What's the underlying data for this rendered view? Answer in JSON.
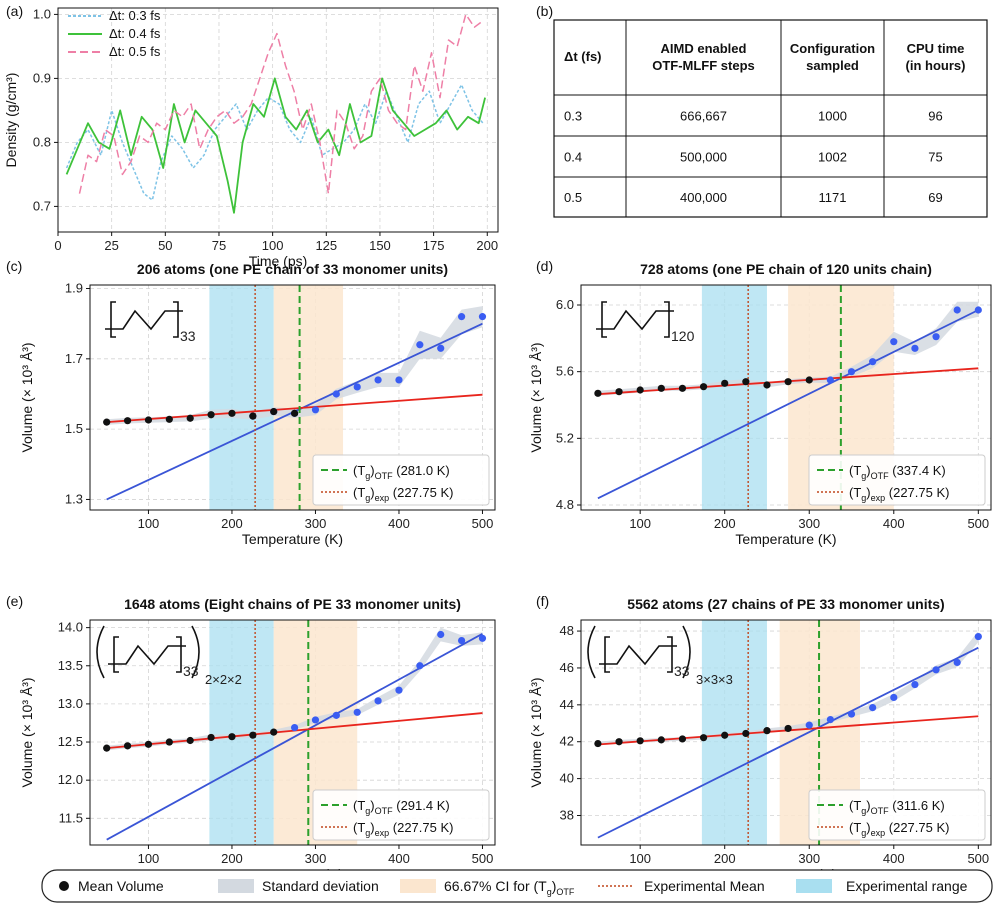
{
  "panel_labels": [
    "(a)",
    "(b)",
    "(c)",
    "(d)",
    "(e)",
    "(f)"
  ],
  "chart_data": [
    {
      "id": "a",
      "type": "line",
      "title": "",
      "xlabel": "Time (ps)",
      "ylabel": "Density (g/cm³)",
      "xlim": [
        0,
        205
      ],
      "ylim": [
        0.66,
        1.01
      ],
      "xticks": [
        0,
        25,
        50,
        75,
        100,
        125,
        150,
        175,
        200
      ],
      "yticks": [
        0.7,
        0.8,
        0.9,
        1.0
      ],
      "ytick_labels": [
        "0.7",
        "0.8",
        "0.9",
        "1.0"
      ],
      "grid": true,
      "legend_position": "top-left",
      "series": [
        {
          "name": "Δt: 0.3 fs",
          "color": "#7ec3e6",
          "style": "dotted",
          "x": [
            4,
            9,
            14,
            20,
            25,
            30,
            35,
            40,
            44,
            48,
            53,
            58,
            63,
            68,
            73,
            78,
            83,
            88,
            93,
            98,
            103,
            108,
            113,
            118,
            123,
            128,
            133,
            138,
            143,
            148,
            153,
            158,
            163,
            168,
            173,
            178,
            183,
            188,
            193,
            198
          ],
          "values": [
            0.76,
            0.8,
            0.82,
            0.78,
            0.85,
            0.8,
            0.76,
            0.72,
            0.71,
            0.77,
            0.81,
            0.79,
            0.76,
            0.78,
            0.82,
            0.84,
            0.86,
            0.82,
            0.85,
            0.87,
            0.86,
            0.82,
            0.8,
            0.84,
            0.78,
            0.79,
            0.8,
            0.82,
            0.86,
            0.83,
            0.88,
            0.84,
            0.8,
            0.86,
            0.88,
            0.83,
            0.86,
            0.89,
            0.85,
            0.83
          ]
        },
        {
          "name": "Δt: 0.4 fs",
          "color": "#3ec23a",
          "style": "solid",
          "x": [
            4,
            9,
            14,
            19,
            24,
            29,
            34,
            39,
            44,
            49,
            54,
            59,
            64,
            69,
            74,
            79,
            82,
            86,
            91,
            96,
            101,
            106,
            111,
            116,
            121,
            126,
            131,
            136,
            141,
            146,
            151,
            156,
            161,
            166,
            171,
            176,
            181,
            186,
            191,
            196,
            199
          ],
          "values": [
            0.75,
            0.79,
            0.83,
            0.8,
            0.79,
            0.85,
            0.78,
            0.84,
            0.82,
            0.76,
            0.86,
            0.8,
            0.85,
            0.83,
            0.81,
            0.74,
            0.69,
            0.8,
            0.86,
            0.84,
            0.9,
            0.84,
            0.82,
            0.85,
            0.8,
            0.82,
            0.78,
            0.86,
            0.8,
            0.81,
            0.9,
            0.85,
            0.83,
            0.81,
            0.82,
            0.83,
            0.85,
            0.82,
            0.84,
            0.83,
            0.87
          ]
        },
        {
          "name": "Δt: 0.5 fs",
          "color": "#ee7fa6",
          "style": "dashed",
          "x": [
            10,
            14,
            18,
            22,
            26,
            30,
            34,
            38,
            42,
            46,
            50,
            54,
            58,
            62,
            66,
            70,
            74,
            78,
            82,
            86,
            90,
            94,
            98,
            102,
            106,
            110,
            114,
            118,
            122,
            126,
            130,
            134,
            138,
            142,
            146,
            150,
            154,
            158,
            162,
            166,
            170,
            174,
            178,
            182,
            186,
            190,
            194,
            198
          ],
          "values": [
            0.72,
            0.78,
            0.77,
            0.82,
            0.81,
            0.75,
            0.77,
            0.81,
            0.8,
            0.83,
            0.82,
            0.85,
            0.84,
            0.86,
            0.79,
            0.82,
            0.84,
            0.85,
            0.83,
            0.84,
            0.86,
            0.9,
            0.94,
            0.97,
            0.92,
            0.88,
            0.82,
            0.86,
            0.8,
            0.72,
            0.85,
            0.83,
            0.79,
            0.81,
            0.88,
            0.9,
            0.85,
            0.83,
            0.82,
            0.92,
            0.88,
            0.94,
            0.87,
            0.96,
            0.95,
            1.0,
            0.98,
            0.99
          ]
        }
      ]
    },
    {
      "id": "b",
      "type": "table",
      "columns": [
        "Δt (fs)",
        "AIMD enabled OTF-MLFF steps",
        "Configuration sampled",
        "CPU time (in hours)"
      ],
      "header_lines": [
        [
          "Δt (fs)"
        ],
        [
          "AIMD enabled",
          "OTF-MLFF steps"
        ],
        [
          "Configuration",
          "sampled"
        ],
        [
          "CPU time",
          "(in hours)"
        ]
      ],
      "rows": [
        [
          "0.3",
          "666,667",
          "1000",
          "96"
        ],
        [
          "0.4",
          "500,000",
          "1002",
          "75"
        ],
        [
          "0.5",
          "400,000",
          "1171",
          "69"
        ]
      ]
    },
    {
      "id": "c",
      "type": "scatter",
      "title": "206 atoms (one PE chain of 33 monomer units)",
      "xlabel": "Temperature (K)",
      "ylabel": "Volume (× 10³ Å³)",
      "xlim": [
        30,
        515
      ],
      "ylim": [
        1.27,
        1.91
      ],
      "xticks": [
        100,
        200,
        300,
        400,
        500
      ],
      "yticks": [
        1.3,
        1.5,
        1.7,
        1.9
      ],
      "ytick_labels": [
        "1.3",
        "1.5",
        "1.7",
        "1.9"
      ],
      "molecule_subscript": "33",
      "exp_range": [
        173,
        250
      ],
      "ci_range": [
        250,
        333
      ],
      "tg_otf": 281.0,
      "tg_exp": 227.75,
      "legend_otf": "(281.0 K)",
      "legend_exp": "(227.75 K)",
      "black_points": {
        "x": [
          50,
          75,
          100,
          125,
          150,
          175,
          200,
          225,
          250,
          275
        ],
        "values": [
          1.52,
          1.524,
          1.526,
          1.528,
          1.531,
          1.541,
          1.545,
          1.537,
          1.55,
          1.545
        ]
      },
      "blue_points": {
        "x": [
          225,
          250,
          275,
          300,
          325,
          350,
          375,
          400,
          425,
          450,
          475,
          500
        ],
        "values": [
          1.537,
          1.55,
          1.545,
          1.555,
          1.6,
          1.62,
          1.64,
          1.64,
          1.74,
          1.73,
          1.82,
          1.82
        ]
      },
      "red_fit": {
        "x": [
          50,
          500
        ],
        "values": [
          1.52,
          1.598
        ]
      },
      "blue_fit": {
        "x": [
          50,
          500
        ],
        "values": [
          1.3,
          1.8
        ]
      },
      "band_x": [
        50,
        75,
        100,
        125,
        150,
        175,
        200,
        225,
        250,
        275,
        300,
        325,
        350,
        375,
        400,
        425,
        450,
        475,
        500
      ],
      "band_low": [
        1.512,
        1.516,
        1.518,
        1.52,
        1.522,
        1.53,
        1.532,
        1.527,
        1.538,
        1.532,
        1.54,
        1.585,
        1.603,
        1.62,
        1.62,
        1.7,
        1.7,
        1.77,
        1.79
      ],
      "band_high": [
        1.528,
        1.532,
        1.534,
        1.536,
        1.54,
        1.555,
        1.558,
        1.548,
        1.562,
        1.558,
        1.57,
        1.615,
        1.637,
        1.66,
        1.66,
        1.78,
        1.76,
        1.84,
        1.85
      ]
    },
    {
      "id": "d",
      "type": "scatter",
      "title": "728 atoms (one PE chain of  120 units chain)",
      "xlabel": "Temperature (K)",
      "ylabel": "Volume (× 10³ Å³)",
      "xlim": [
        30,
        515
      ],
      "ylim": [
        4.77,
        6.12
      ],
      "xticks": [
        100,
        200,
        300,
        400,
        500
      ],
      "yticks": [
        4.8,
        5.2,
        5.6,
        6.0
      ],
      "ytick_labels": [
        "4.8",
        "5.2",
        "5.6",
        "6.0"
      ],
      "molecule_subscript": "120",
      "exp_range": [
        173,
        250
      ],
      "ci_range": [
        275,
        400
      ],
      "tg_otf": 337.4,
      "tg_exp": 227.75,
      "legend_otf": "(337.4 K)",
      "legend_exp": "(227.75 K)",
      "black_points": {
        "x": [
          50,
          75,
          100,
          125,
          150,
          175,
          200,
          225,
          250,
          275,
          300
        ],
        "values": [
          5.47,
          5.48,
          5.49,
          5.5,
          5.5,
          5.51,
          5.53,
          5.54,
          5.52,
          5.54,
          5.55
        ]
      },
      "blue_points": {
        "x": [
          325,
          350,
          375,
          400,
          425,
          450,
          475,
          500
        ],
        "values": [
          5.55,
          5.6,
          5.66,
          5.78,
          5.74,
          5.81,
          5.97,
          5.97
        ]
      },
      "red_fit": {
        "x": [
          50,
          500
        ],
        "values": [
          5.465,
          5.62
        ]
      },
      "blue_fit": {
        "x": [
          50,
          500
        ],
        "values": [
          4.84,
          5.97
        ]
      },
      "band_x": [
        50,
        75,
        100,
        125,
        150,
        175,
        200,
        225,
        250,
        275,
        300,
        325,
        350,
        375,
        400,
        425,
        450,
        475,
        500
      ],
      "band_low": [
        5.455,
        5.465,
        5.475,
        5.485,
        5.485,
        5.495,
        5.515,
        5.525,
        5.505,
        5.525,
        5.535,
        5.53,
        5.57,
        5.62,
        5.72,
        5.7,
        5.76,
        5.9,
        5.93
      ],
      "band_high": [
        5.485,
        5.495,
        5.505,
        5.515,
        5.515,
        5.525,
        5.545,
        5.555,
        5.535,
        5.555,
        5.565,
        5.57,
        5.63,
        5.7,
        5.84,
        5.78,
        5.86,
        6.02,
        6.02
      ]
    },
    {
      "id": "e",
      "type": "scatter",
      "title": "1648 atoms (Eight chains of PE 33 monomer units)",
      "xlabel": "Temperature (K)",
      "ylabel": "Volume (× 10³ Å³)",
      "xlim": [
        30,
        515
      ],
      "ylim": [
        11.15,
        14.1
      ],
      "xticks": [
        100,
        200,
        300,
        400,
        500
      ],
      "yticks": [
        11.5,
        12.0,
        12.5,
        13.0,
        13.5,
        14.0
      ],
      "ytick_labels": [
        "11.5",
        "12.0",
        "12.5",
        "13.0",
        "13.5",
        "14.0"
      ],
      "molecule_subscript": "33",
      "molecule_supercell": "2×2×2",
      "exp_range": [
        173,
        250
      ],
      "ci_range": [
        250,
        350
      ],
      "tg_otf": 291.4,
      "tg_exp": 227.75,
      "legend_otf": "(291.4 K)",
      "legend_exp": "(227.75 K)",
      "black_points": {
        "x": [
          50,
          75,
          100,
          125,
          150,
          175,
          200,
          225,
          250
        ],
        "values": [
          12.42,
          12.45,
          12.47,
          12.5,
          12.52,
          12.56,
          12.57,
          12.59,
          12.63
        ]
      },
      "blue_points": {
        "x": [
          275,
          300,
          325,
          350,
          375,
          400,
          425,
          450,
          475,
          500
        ],
        "values": [
          12.69,
          12.79,
          12.85,
          12.89,
          13.04,
          13.18,
          13.5,
          13.91,
          13.83,
          13.86
        ]
      },
      "red_fit": {
        "x": [
          50,
          500
        ],
        "values": [
          12.42,
          12.88
        ]
      },
      "blue_fit": {
        "x": [
          50,
          500
        ],
        "values": [
          11.22,
          13.92
        ]
      },
      "band_x": [
        50,
        75,
        100,
        125,
        150,
        175,
        200,
        225,
        250,
        275,
        300,
        325,
        350,
        375,
        400,
        425,
        450,
        475,
        500
      ],
      "band_low": [
        12.39,
        12.42,
        12.44,
        12.47,
        12.49,
        12.52,
        12.54,
        12.56,
        12.6,
        12.66,
        12.75,
        12.81,
        12.85,
        12.99,
        13.12,
        13.43,
        13.82,
        13.76,
        13.78
      ],
      "band_high": [
        12.45,
        12.48,
        12.5,
        12.53,
        12.55,
        12.6,
        12.6,
        12.62,
        12.66,
        12.72,
        12.83,
        12.89,
        12.93,
        13.09,
        13.24,
        13.57,
        14.0,
        13.9,
        13.94
      ]
    },
    {
      "id": "f",
      "type": "scatter",
      "title": "5562 atoms (27 chains of PE 33 monomer units)",
      "xlabel": "Temperature (K)",
      "ylabel": "Volume (× 10³ Å³)",
      "xlim": [
        30,
        515
      ],
      "ylim": [
        36.4,
        48.6
      ],
      "xticks": [
        100,
        200,
        300,
        400,
        500
      ],
      "yticks": [
        38,
        40,
        42,
        44,
        46,
        48
      ],
      "ytick_labels": [
        "38",
        "40",
        "42",
        "44",
        "46",
        "48"
      ],
      "molecule_subscript": "33",
      "molecule_supercell": "3×3×3",
      "exp_range": [
        173,
        250
      ],
      "ci_range": [
        265,
        360
      ],
      "tg_otf": 311.6,
      "tg_exp": 227.75,
      "legend_otf": "(311.6 K)",
      "legend_exp": "(227.75 K)",
      "black_points": {
        "x": [
          50,
          75,
          100,
          125,
          150,
          175,
          200,
          225,
          250,
          275
        ],
        "values": [
          41.9,
          42.0,
          42.05,
          42.1,
          42.15,
          42.22,
          42.35,
          42.45,
          42.6,
          42.72
        ]
      },
      "blue_points": {
        "x": [
          300,
          325,
          350,
          375,
          400,
          425,
          450,
          475,
          500
        ],
        "values": [
          42.9,
          43.2,
          43.5,
          43.85,
          44.4,
          45.1,
          45.9,
          46.3,
          47.7
        ]
      },
      "red_fit": {
        "x": [
          50,
          500
        ],
        "values": [
          41.85,
          43.38
        ]
      },
      "blue_fit": {
        "x": [
          50,
          500
        ],
        "values": [
          36.8,
          47.1
        ]
      },
      "band_x": [
        50,
        75,
        100,
        125,
        150,
        175,
        200,
        225,
        250,
        275,
        300,
        325,
        350,
        375,
        400,
        425,
        450,
        475,
        500
      ],
      "band_low": [
        41.8,
        41.9,
        41.95,
        42.0,
        42.05,
        42.12,
        42.25,
        42.35,
        42.48,
        42.6,
        42.75,
        43.05,
        43.35,
        43.65,
        44.2,
        44.9,
        45.65,
        46.05,
        47.4
      ],
      "band_high": [
        42.0,
        42.1,
        42.15,
        42.2,
        42.25,
        42.32,
        42.45,
        42.55,
        42.72,
        42.84,
        43.05,
        43.35,
        43.65,
        44.05,
        44.6,
        45.3,
        46.15,
        46.55,
        48.0
      ]
    }
  ],
  "series_style": {
    "red_fit_color": "#e8251d",
    "blue_fit_color": "#3a55d6",
    "blue_point_color": "#3a5df2",
    "black_point_color": "#111111",
    "otf_line_color": "#2ca02c",
    "exp_line_color": "#c0461c",
    "band_color": "#d3d9e0",
    "ci_color": "#fbe6cf",
    "exp_color": "#a9dff0"
  },
  "legend_labels": {
    "tg_otf": "(T",
    "tg_otf_sub": "g",
    "tg_otf_suffix": ")",
    "tg_otf_sub2": "OTF",
    "tg_exp_sub2": "exp"
  },
  "bottom_legend": {
    "items": [
      "Mean Volume",
      "Standard deviation",
      "66.67% CI for (T",
      "Experimental Mean",
      "Experimental range"
    ],
    "ci_sub_g": "g",
    "ci_close": ")",
    "ci_sub_otf": "OTF"
  }
}
